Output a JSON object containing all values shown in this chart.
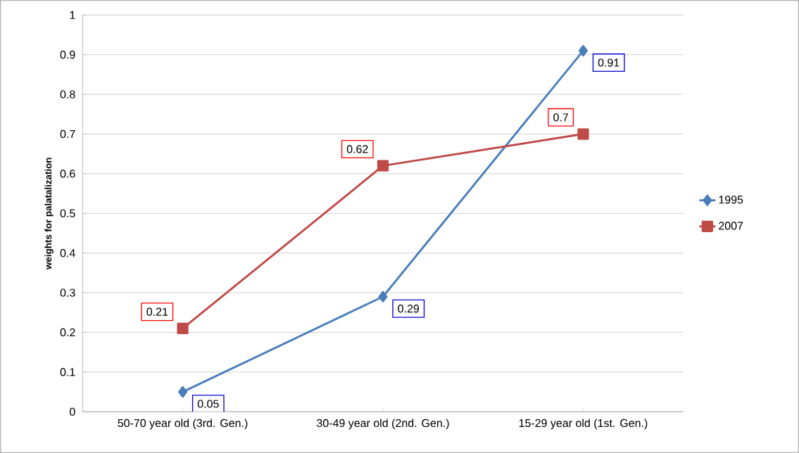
{
  "chart_data": {
    "type": "line",
    "ylabel": "weights for palatalization",
    "categories": [
      "50-70 year old (3rd. Gen.)",
      "30-49 year old (2nd. Gen.)",
      "15-29 year old (1st. Gen.)"
    ],
    "series": [
      {
        "name": "1995",
        "color": "#4a7ebb",
        "marker": "diamond",
        "values": [
          0.05,
          0.29,
          0.91
        ]
      },
      {
        "name": "2007",
        "color": "#be4b48",
        "marker": "square",
        "values": [
          0.21,
          0.62,
          0.7
        ]
      }
    ],
    "ylim": [
      0,
      1
    ],
    "yticks": [
      0,
      0.1,
      0.2,
      0.3,
      0.4,
      0.5,
      0.6,
      0.7,
      0.8,
      0.9,
      1
    ],
    "grid": "y",
    "legend": "right",
    "data_labels": true
  }
}
